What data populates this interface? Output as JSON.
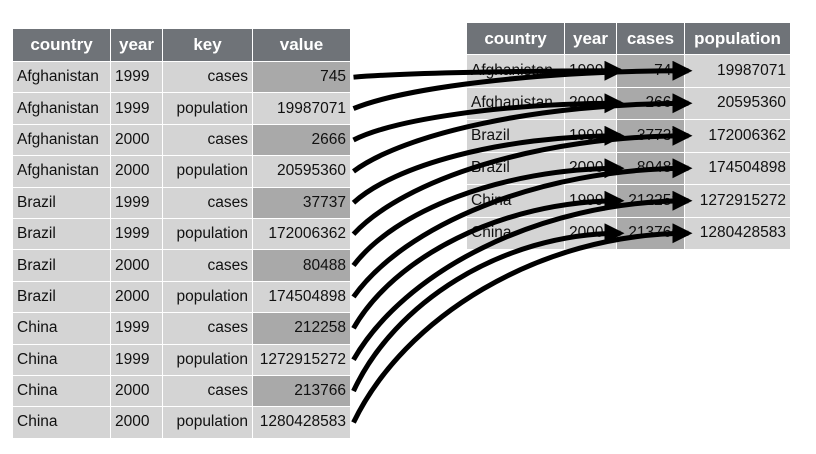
{
  "left_table": {
    "headers": [
      "country",
      "year",
      "key",
      "value"
    ],
    "rows": [
      [
        "Afghanistan",
        "1999",
        "cases",
        "745"
      ],
      [
        "Afghanistan",
        "1999",
        "population",
        "19987071"
      ],
      [
        "Afghanistan",
        "2000",
        "cases",
        "2666"
      ],
      [
        "Afghanistan",
        "2000",
        "population",
        "20595360"
      ],
      [
        "Brazil",
        "1999",
        "cases",
        "37737"
      ],
      [
        "Brazil",
        "1999",
        "population",
        "172006362"
      ],
      [
        "Brazil",
        "2000",
        "cases",
        "80488"
      ],
      [
        "Brazil",
        "2000",
        "population",
        "174504898"
      ],
      [
        "China",
        "1999",
        "cases",
        "212258"
      ],
      [
        "China",
        "1999",
        "population",
        "1272915272"
      ],
      [
        "China",
        "2000",
        "cases",
        "213766"
      ],
      [
        "China",
        "2000",
        "population",
        "1280428583"
      ]
    ]
  },
  "right_table": {
    "headers": [
      "country",
      "year",
      "cases",
      "population"
    ],
    "rows": [
      [
        "Afghanistan",
        "1999",
        "745",
        "19987071"
      ],
      [
        "Afghanistan",
        "2000",
        "2666",
        "20595360"
      ],
      [
        "Brazil",
        "1999",
        "37737",
        "172006362"
      ],
      [
        "Brazil",
        "2000",
        "80488",
        "174504898"
      ],
      [
        "China",
        "1999",
        "212258",
        "1272915272"
      ],
      [
        "China",
        "2000",
        "213766",
        "1280428583"
      ]
    ]
  },
  "colors": {
    "header_bg": "#6f7378",
    "cell_bg": "#d4d4d4",
    "highlight_bg": "#a9a9a9",
    "arrow": "#000000"
  }
}
